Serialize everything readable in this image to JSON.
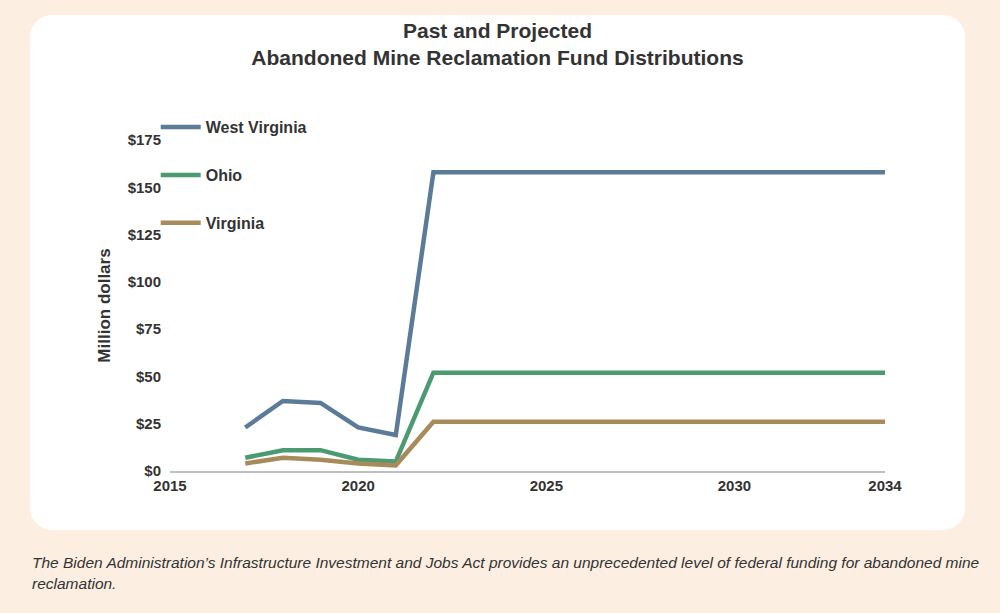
{
  "chart_data": {
    "type": "line",
    "title": [
      "Past and Projected",
      "Abandoned Mine Reclamation Fund Distributions"
    ],
    "y_label": "Million dollars",
    "caption": "The Biden Administration’s Infrastructure Investment and Jobs Act provides an unprecedented level of federal funding for abandoned mine reclamation.",
    "x": [
      2017,
      2018,
      2019,
      2020,
      2021,
      2022,
      2023,
      2024,
      2025,
      2026,
      2027,
      2028,
      2029,
      2030,
      2031,
      2032,
      2033,
      2034
    ],
    "series": [
      {
        "name": "West Virginia",
        "color": "#5b7b98",
        "values": [
          23,
          37,
          36,
          23,
          19,
          158,
          158,
          158,
          158,
          158,
          158,
          158,
          158,
          158,
          158,
          158,
          158,
          158
        ]
      },
      {
        "name": "Ohio",
        "color": "#4c9a72",
        "values": [
          7,
          11,
          11,
          6,
          5,
          52,
          52,
          52,
          52,
          52,
          52,
          52,
          52,
          52,
          52,
          52,
          52,
          52
        ]
      },
      {
        "name": "Virginia",
        "color": "#a88b5b",
        "values": [
          4,
          7,
          6,
          4,
          3,
          26,
          26,
          26,
          26,
          26,
          26,
          26,
          26,
          26,
          26,
          26,
          26,
          26
        ]
      }
    ],
    "xlim": [
      2015,
      2034
    ],
    "xticks": [
      2015,
      2020,
      2025,
      2030,
      2034
    ],
    "ylim": [
      0,
      175
    ],
    "yticks": [
      {
        "value": 0,
        "label": "$0"
      },
      {
        "value": 25,
        "label": "$25"
      },
      {
        "value": 50,
        "label": "$50"
      },
      {
        "value": 75,
        "label": "$75"
      },
      {
        "value": 100,
        "label": "$100"
      },
      {
        "value": 125,
        "label": "$125"
      },
      {
        "value": 150,
        "label": "$150"
      },
      {
        "value": 175,
        "label": "$175"
      }
    ],
    "grid": false,
    "legend": "top-left"
  }
}
